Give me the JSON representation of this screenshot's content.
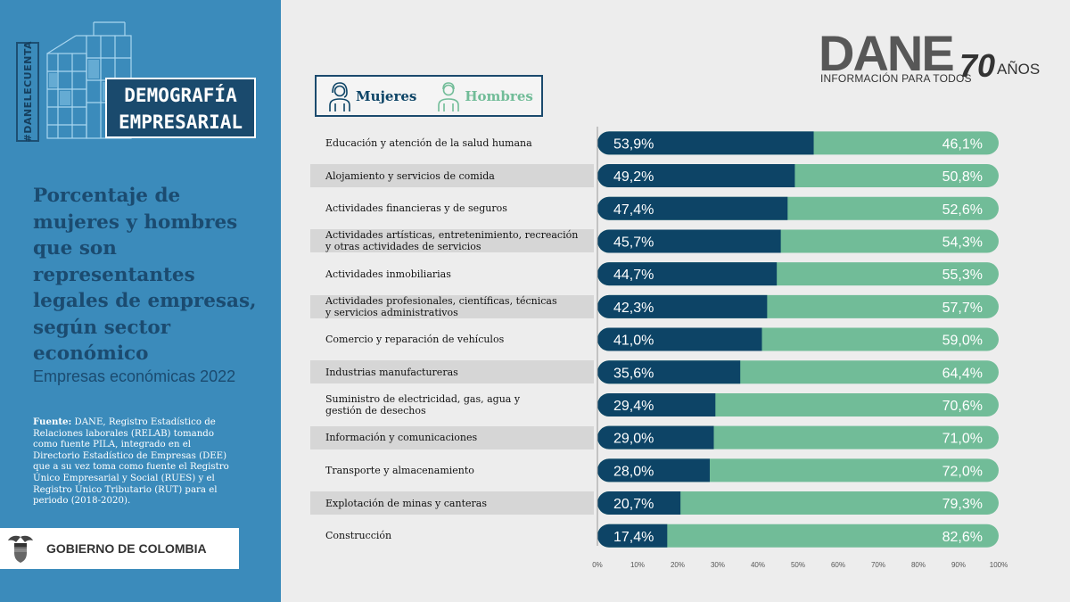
{
  "panel": {
    "hashtag": "#DANELECUENTA",
    "banner_line1": "DEMOGRAFÍA",
    "banner_line2": "EMPRESARIAL",
    "title": "Porcentaje de mujeres y hombres que son representantes legales de empresas, según sector económico",
    "subtitle": "Empresas económicas 2022",
    "source_label": "Fuente:",
    "source_text": " DANE, Registro Estadístico de Relaciones laborales (RELAB) tomando como fuente PILA, integrado en el Directorio Estadístico de Empresas (DEE) que a su vez toma como fuente el Registro Único Empresarial y Social (RUES) y el Registro Único Tributario (RUT) para el periodo (2018-2020).",
    "gov": "GOBIERNO DE COLOMBIA"
  },
  "logo": {
    "name": "DANE",
    "tagline": "INFORMACIÓN PARA TODOS",
    "seventy": "70",
    "anos": "AÑOS"
  },
  "colors": {
    "mujeres": "#0d4466",
    "hombres": "#71bc98",
    "axis": "#999999"
  },
  "chart_data": {
    "type": "bar",
    "orientation": "horizontal-stacked-100",
    "legend": [
      "Mujeres",
      "Hombres"
    ],
    "categories": [
      [
        "Educación y atención de la salud humana"
      ],
      [
        "Alojamiento y servicios de comida"
      ],
      [
        "Actividades financieras y de seguros"
      ],
      [
        "Actividades artísticas, entretenimiento, recreación",
        "y otras actividades de servicios"
      ],
      [
        "Actividades inmobiliarias"
      ],
      [
        "Actividades profesionales, científicas, técnicas",
        "y servicios administrativos"
      ],
      [
        "Comercio y reparación de vehículos"
      ],
      [
        "Industrias manufactureras"
      ],
      [
        "Suministro de electricidad, gas, agua y",
        "gestión de desechos"
      ],
      [
        "Información y comunicaciones"
      ],
      [
        "Transporte y almacenamiento"
      ],
      [
        "Explotación de minas y canteras"
      ],
      [
        "Construcción"
      ]
    ],
    "series": [
      {
        "name": "Mujeres",
        "values": [
          53.9,
          49.2,
          47.4,
          45.7,
          44.7,
          42.3,
          41.0,
          35.6,
          29.4,
          29.0,
          28.0,
          20.7,
          17.4
        ],
        "labels": [
          "53,9%",
          "49,2%",
          "47,4%",
          "45,7%",
          "44,7%",
          "42,3%",
          "41,0%",
          "35,6%",
          "29,4%",
          "29,0%",
          "28,0%",
          "20,7%",
          "17,4%"
        ]
      },
      {
        "name": "Hombres",
        "values": [
          46.1,
          50.8,
          52.6,
          54.3,
          55.3,
          57.7,
          59.0,
          64.4,
          70.6,
          71.0,
          72.0,
          79.3,
          82.6
        ],
        "labels": [
          "46,1%",
          "50,8%",
          "52,6%",
          "54,3%",
          "55,3%",
          "57,7%",
          "59,0%",
          "64,4%",
          "70,6%",
          "71,0%",
          "72,0%",
          "79,3%",
          "82,6%"
        ]
      }
    ],
    "xlim": [
      0,
      100
    ],
    "xticks": [
      "0%",
      "10%",
      "20%",
      "30%",
      "40%",
      "50%",
      "60%",
      "70%",
      "80%",
      "90%",
      "100%"
    ]
  }
}
